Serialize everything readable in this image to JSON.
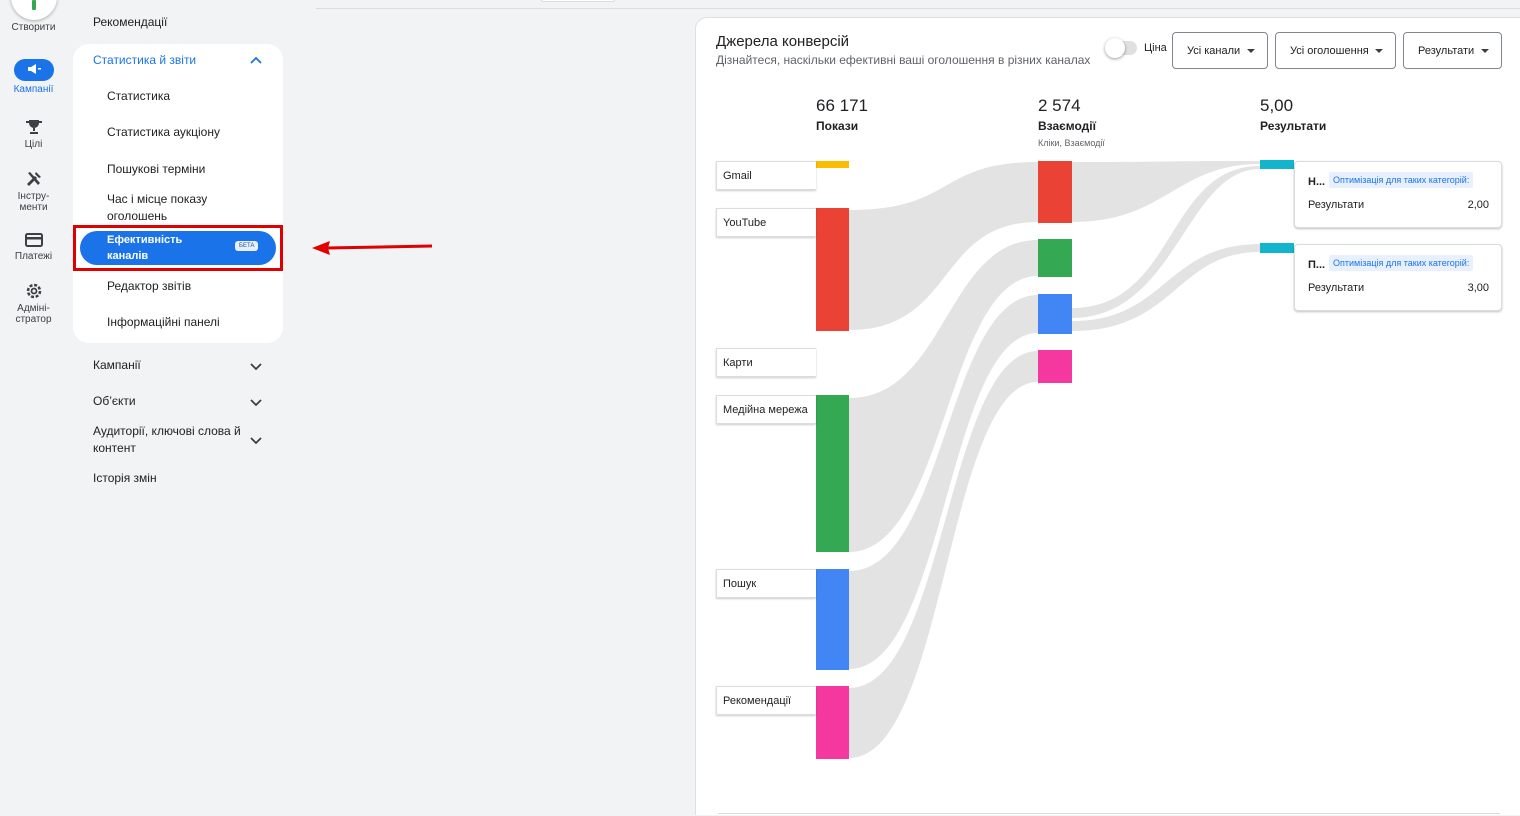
{
  "rail": {
    "create_label": "Створити",
    "items": [
      {
        "label": "Кампанії",
        "icon": "megaphone-icon",
        "active": true
      },
      {
        "label": "Цілі",
        "icon": "trophy-icon"
      },
      {
        "label": "Інстру-\nменти",
        "icon": "tools-icon"
      },
      {
        "label": "Платежі",
        "icon": "credit-card-icon"
      },
      {
        "label": "Адміні-\nстратор",
        "icon": "gear-icon"
      }
    ]
  },
  "nav": {
    "top_item": "Рекомендації",
    "stats_section": {
      "label": "Статистика й звіти",
      "items": [
        "Статистика",
        "Статистика аукціону",
        "Пошукові терміни",
        "Час і місце показу оголошень",
        "Ефективність каналів",
        "Редактор звітів",
        "Інформаційні панелі"
      ],
      "selected_badge": "БЕТА"
    },
    "sections": [
      "Кампанії",
      "Об’єкти",
      "Аудиторії, ключові слова й контент",
      "Історія змін"
    ]
  },
  "card": {
    "title": "Джерела конверсій",
    "subtitle": "Дізнайтеся, наскільки ефективні ваші оголошення в різних каналах",
    "toggle_label": "Ціна",
    "dropdowns": [
      "Усі канали",
      "Усі оголошення",
      "Результати"
    ]
  },
  "metrics": [
    {
      "value": "66 171",
      "label": "Покази",
      "sub": ""
    },
    {
      "value": "2 574",
      "label": "Взаємодії",
      "sub": "Кліки, Взаємодії"
    },
    {
      "value": "5,00",
      "label": "Результати",
      "sub": ""
    }
  ],
  "chart_data": {
    "type": "sankey",
    "channels": [
      "Gmail",
      "YouTube",
      "Карти",
      "Медійна мережа",
      "Пошук",
      "Рекомендації"
    ],
    "channel_colors": {
      "Gmail": "#fbbc04",
      "YouTube": "#ea4335",
      "Карти": "#ffffff",
      "Медійна мережа": "#34a853",
      "Пошук": "#4285f4",
      "Рекомендації": "#f538a0"
    },
    "impressions_share": [
      0.8,
      12,
      0,
      16,
      10,
      7
    ],
    "interaction_colors": [
      "#ea4335",
      "#34a853",
      "#4285f4",
      "#f538a0"
    ],
    "results_color": "#12b5cb"
  },
  "results": [
    {
      "title": "Н...",
      "chip": "Оптимізація для таких категорій:",
      "row_label": "Результати",
      "row_value": "2,00"
    },
    {
      "title": "П...",
      "chip": "Оптимізація для таких категорій:",
      "row_label": "Результати",
      "row_value": "3,00"
    }
  ]
}
